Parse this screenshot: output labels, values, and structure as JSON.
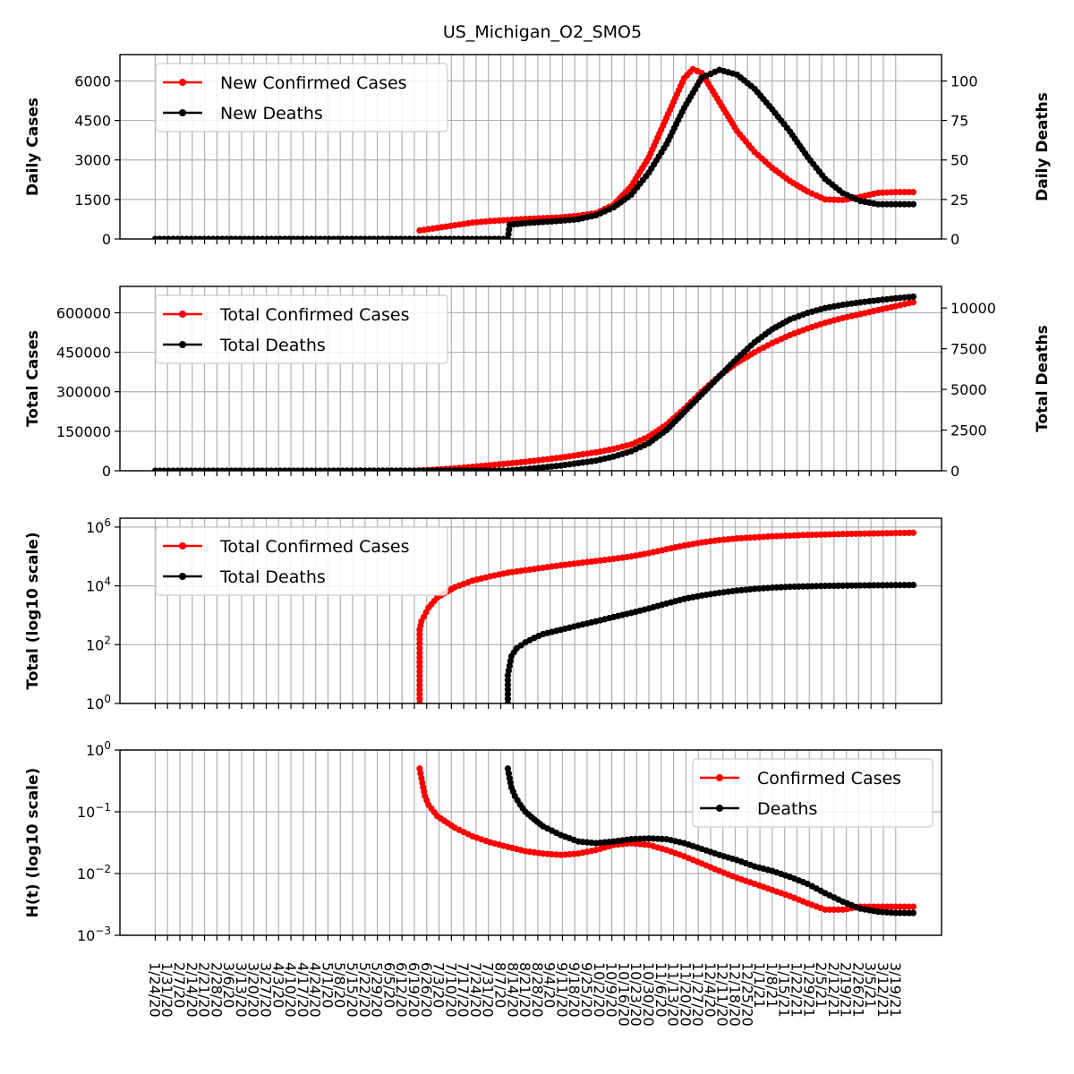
{
  "title": "US_Michigan_O2_SMO5",
  "colors": {
    "cases": "#ff0000",
    "deaths": "#000000",
    "grid": "#b0b0b0"
  },
  "x_ticks": [
    "1/24/20",
    "1/31/20",
    "2/7/20",
    "2/14/20",
    "2/21/20",
    "2/28/20",
    "3/6/20",
    "3/13/20",
    "3/20/20",
    "3/27/20",
    "4/3/20",
    "4/10/20",
    "4/17/20",
    "4/24/20",
    "5/1/20",
    "5/8/20",
    "5/15/20",
    "5/22/20",
    "5/29/20",
    "6/5/20",
    "6/12/20",
    "6/19/20",
    "6/26/20",
    "7/3/20",
    "7/10/20",
    "7/17/20",
    "7/24/20",
    "7/31/20",
    "8/7/20",
    "8/14/20",
    "8/21/20",
    "8/28/20",
    "9/4/20",
    "9/11/20",
    "9/18/20",
    "9/25/20",
    "10/2/20",
    "10/9/20",
    "10/16/20",
    "10/23/20",
    "10/30/20",
    "11/6/20",
    "11/13/20",
    "11/20/20",
    "11/27/20",
    "12/4/20",
    "12/11/20",
    "12/18/20",
    "12/25/20",
    "1/1/21",
    "1/8/21",
    "1/15/21",
    "1/22/21",
    "1/29/21",
    "2/5/21",
    "2/12/21",
    "2/19/21",
    "2/26/21",
    "3/5/21",
    "3/12/21",
    "3/19/21"
  ],
  "chart_data": [
    {
      "type": "line",
      "ylabel": "Daily Cases",
      "y2label": "Daily Deaths",
      "ylim": [
        0,
        7000
      ],
      "yticks": [
        "0",
        "1500",
        "3000",
        "4500",
        "6000"
      ],
      "y2lim": [
        0,
        116.7
      ],
      "y2ticks": [
        "0",
        "25",
        "50",
        "75",
        "100"
      ],
      "legend": "top-left",
      "series": [
        {
          "name": "New Confirmed Cases",
          "axis": "left",
          "color": "#ff0000",
          "points": [
            [
              150,
              320
            ],
            [
              160,
              420
            ],
            [
              170,
              520
            ],
            [
              180,
              620
            ],
            [
              190,
              680
            ],
            [
              200,
              720
            ],
            [
              210,
              760
            ],
            [
              220,
              790
            ],
            [
              230,
              820
            ],
            [
              240,
              880
            ],
            [
              250,
              980
            ],
            [
              260,
              1300
            ],
            [
              270,
              2000
            ],
            [
              280,
              3100
            ],
            [
              290,
              4600
            ],
            [
              300,
              6100
            ],
            [
              305,
              6450
            ],
            [
              310,
              6300
            ],
            [
              320,
              5200
            ],
            [
              330,
              4100
            ],
            [
              340,
              3300
            ],
            [
              350,
              2700
            ],
            [
              360,
              2200
            ],
            [
              370,
              1800
            ],
            [
              380,
              1500
            ],
            [
              390,
              1480
            ],
            [
              400,
              1600
            ],
            [
              410,
              1750
            ],
            [
              420,
              1780
            ],
            [
              430,
              1780
            ]
          ]
        },
        {
          "name": "New Deaths",
          "axis": "right",
          "color": "#000000",
          "points": [
            [
              0,
              0
            ],
            [
              200,
              0
            ],
            [
              201,
              9
            ],
            [
              210,
              10
            ],
            [
              230,
              11.5
            ],
            [
              240,
              12.5
            ],
            [
              250,
              15
            ],
            [
              260,
              20
            ],
            [
              270,
              28
            ],
            [
              280,
              42
            ],
            [
              290,
              60
            ],
            [
              300,
              83
            ],
            [
              310,
              102
            ],
            [
              320,
              107
            ],
            [
              330,
              104
            ],
            [
              340,
              95
            ],
            [
              350,
              82
            ],
            [
              360,
              68
            ],
            [
              370,
              52
            ],
            [
              380,
              38
            ],
            [
              390,
              29
            ],
            [
              400,
              24
            ],
            [
              410,
              22
            ],
            [
              420,
              22
            ],
            [
              430,
              22
            ]
          ]
        }
      ]
    },
    {
      "type": "line",
      "ylabel": "Total Cases",
      "y2label": "Total Deaths",
      "ylim": [
        0,
        700000
      ],
      "yticks": [
        "0",
        "150000",
        "300000",
        "450000",
        "600000"
      ],
      "y2lim": [
        0,
        11330
      ],
      "y2ticks": [
        "0",
        "2500",
        "5000",
        "7500",
        "10000"
      ],
      "legend": "top-left",
      "series": [
        {
          "name": "Total Confirmed Cases",
          "axis": "left",
          "color": "#ff0000",
          "points": [
            [
              150,
              300
            ],
            [
              170,
              9000
            ],
            [
              190,
              21000
            ],
            [
              210,
              34000
            ],
            [
              230,
              50000
            ],
            [
              250,
              70000
            ],
            [
              260,
              83000
            ],
            [
              270,
              100000
            ],
            [
              280,
              130000
            ],
            [
              290,
              175000
            ],
            [
              300,
              235000
            ],
            [
              310,
              300000
            ],
            [
              320,
              360000
            ],
            [
              330,
              410000
            ],
            [
              340,
              450000
            ],
            [
              350,
              485000
            ],
            [
              360,
              515000
            ],
            [
              370,
              540000
            ],
            [
              380,
              562000
            ],
            [
              390,
              580000
            ],
            [
              400,
              595000
            ],
            [
              410,
              610000
            ],
            [
              420,
              625000
            ],
            [
              430,
              640000
            ]
          ]
        },
        {
          "name": "Total Deaths",
          "axis": "right",
          "color": "#000000",
          "points": [
            [
              0,
              0
            ],
            [
              200,
              9
            ],
            [
              210,
              100
            ],
            [
              230,
              320
            ],
            [
              250,
              620
            ],
            [
              260,
              870
            ],
            [
              270,
              1200
            ],
            [
              280,
              1700
            ],
            [
              290,
              2500
            ],
            [
              300,
              3600
            ],
            [
              310,
              4700
            ],
            [
              320,
              5800
            ],
            [
              330,
              6900
            ],
            [
              340,
              7900
            ],
            [
              350,
              8700
            ],
            [
              360,
              9300
            ],
            [
              370,
              9700
            ],
            [
              380,
              10000
            ],
            [
              390,
              10200
            ],
            [
              400,
              10350
            ],
            [
              410,
              10480
            ],
            [
              420,
              10600
            ],
            [
              430,
              10700
            ]
          ]
        }
      ]
    },
    {
      "type": "line",
      "ylabel": "Total (log10 scale)",
      "yscale": "log",
      "ylim": [
        1,
        2000000
      ],
      "yticks": [
        "10^0",
        "10^2",
        "10^4",
        "10^6"
      ],
      "legend": "top-left",
      "series": [
        {
          "name": "Total Confirmed Cases",
          "color": "#ff0000",
          "points": [
            [
              150,
              1
            ],
            [
              150,
              320
            ],
            [
              151,
              620
            ],
            [
              155,
              1800
            ],
            [
              160,
              4000
            ],
            [
              170,
              9000
            ],
            [
              180,
              15000
            ],
            [
              190,
              21000
            ],
            [
              200,
              28000
            ],
            [
              210,
              34000
            ],
            [
              230,
              50000
            ],
            [
              250,
              70000
            ],
            [
              260,
              83000
            ],
            [
              270,
              100000
            ],
            [
              280,
              130000
            ],
            [
              290,
              175000
            ],
            [
              300,
              235000
            ],
            [
              310,
              300000
            ],
            [
              320,
              360000
            ],
            [
              330,
              410000
            ],
            [
              350,
              485000
            ],
            [
              370,
              540000
            ],
            [
              390,
              580000
            ],
            [
              410,
              610000
            ],
            [
              430,
              640000
            ]
          ]
        },
        {
          "name": "Total Deaths",
          "color": "#000000",
          "points": [
            [
              200,
              1
            ],
            [
              200,
              9
            ],
            [
              202,
              40
            ],
            [
              205,
              75
            ],
            [
              210,
              120
            ],
            [
              215,
              170
            ],
            [
              220,
              230
            ],
            [
              230,
              320
            ],
            [
              240,
              450
            ],
            [
              250,
              620
            ],
            [
              260,
              870
            ],
            [
              270,
              1200
            ],
            [
              280,
              1700
            ],
            [
              290,
              2500
            ],
            [
              300,
              3600
            ],
            [
              310,
              4700
            ],
            [
              320,
              5800
            ],
            [
              330,
              6900
            ],
            [
              340,
              7900
            ],
            [
              350,
              8700
            ],
            [
              360,
              9300
            ],
            [
              380,
              10000
            ],
            [
              400,
              10350
            ],
            [
              430,
              10700
            ]
          ]
        }
      ]
    },
    {
      "type": "line",
      "ylabel": "H(t) (log10 scale)",
      "yscale": "log",
      "ylim": [
        0.001,
        1
      ],
      "yticks": [
        "10^−3",
        "10^−2",
        "10^−1",
        "10^0"
      ],
      "legend": "top-right",
      "series": [
        {
          "name": "Confirmed Cases",
          "color": "#ff0000",
          "points": [
            [
              150,
              0.5
            ],
            [
              151,
              0.35
            ],
            [
              152,
              0.25
            ],
            [
              153,
              0.18
            ],
            [
              155,
              0.13
            ],
            [
              160,
              0.085
            ],
            [
              170,
              0.055
            ],
            [
              180,
              0.04
            ],
            [
              190,
              0.032
            ],
            [
              200,
              0.027
            ],
            [
              210,
              0.023
            ],
            [
              220,
              0.021
            ],
            [
              230,
              0.02
            ],
            [
              240,
              0.021
            ],
            [
              250,
              0.024
            ],
            [
              260,
              0.029
            ],
            [
              270,
              0.031
            ],
            [
              280,
              0.029
            ],
            [
              290,
              0.024
            ],
            [
              300,
              0.019
            ],
            [
              310,
              0.0145
            ],
            [
              320,
              0.011
            ],
            [
              330,
              0.0085
            ],
            [
              340,
              0.0068
            ],
            [
              350,
              0.0054
            ],
            [
              360,
              0.0043
            ],
            [
              370,
              0.0033
            ],
            [
              380,
              0.0026
            ],
            [
              390,
              0.0026
            ],
            [
              400,
              0.0029
            ],
            [
              410,
              0.0029
            ],
            [
              430,
              0.0029
            ]
          ]
        },
        {
          "name": "Deaths",
          "color": "#000000",
          "points": [
            [
              200,
              0.5
            ],
            [
              201,
              0.35
            ],
            [
              202,
              0.25
            ],
            [
              204,
              0.18
            ],
            [
              207,
              0.13
            ],
            [
              210,
              0.1
            ],
            [
              215,
              0.075
            ],
            [
              220,
              0.058
            ],
            [
              230,
              0.042
            ],
            [
              240,
              0.033
            ],
            [
              250,
              0.031
            ],
            [
              260,
              0.033
            ],
            [
              270,
              0.036
            ],
            [
              280,
              0.037
            ],
            [
              290,
              0.036
            ],
            [
              300,
              0.031
            ],
            [
              310,
              0.025
            ],
            [
              320,
              0.02
            ],
            [
              330,
              0.0165
            ],
            [
              340,
              0.013
            ],
            [
              350,
              0.011
            ],
            [
              360,
              0.0088
            ],
            [
              370,
              0.0068
            ],
            [
              380,
              0.0048
            ],
            [
              390,
              0.0035
            ],
            [
              400,
              0.0027
            ],
            [
              410,
              0.0024
            ],
            [
              420,
              0.0023
            ],
            [
              430,
              0.0023
            ]
          ]
        }
      ]
    }
  ]
}
